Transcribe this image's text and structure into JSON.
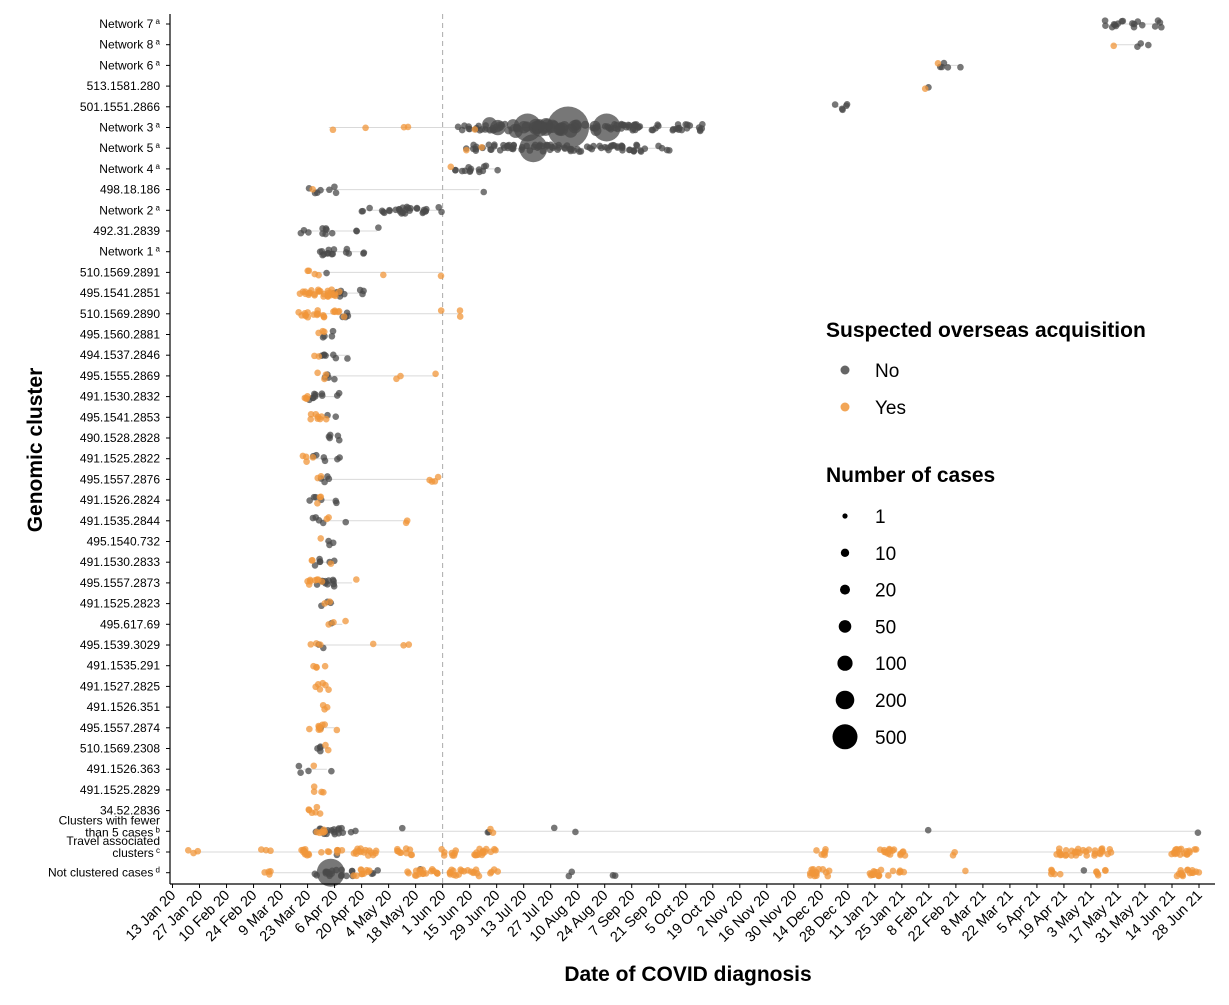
{
  "chart_data": {
    "type": "scatter",
    "xlabel": "Date of COVID diagnosis",
    "ylabel": "Genomic cluster",
    "x_ticks": [
      "13 Jan 20",
      "27 Jan 20",
      "10 Feb 20",
      "24 Feb 20",
      "9 Mar 20",
      "23 Mar 20",
      "6 Apr 20",
      "20 Apr 20",
      "4 May 20",
      "18 May 20",
      "1 Jun 20",
      "15 Jun 20",
      "29 Jun 20",
      "13 Jul 20",
      "27 Jul 20",
      "10 Aug 20",
      "24 Aug 20",
      "7 Sep 20",
      "21 Sep 20",
      "5 Oct 20",
      "19 Oct 20",
      "2 Nov 20",
      "16 Nov 20",
      "30 Nov 20",
      "14 Dec 20",
      "28 Dec 20",
      "11 Jan 21",
      "25 Jan 21",
      "8 Feb 21",
      "22 Feb 21",
      "8 Mar 21",
      "22 Mar 21",
      "5 Apr 21",
      "19 Apr 21",
      "3 May 21",
      "17 May 21",
      "31 May 21",
      "14 Jun 21",
      "28 Jun 21"
    ],
    "reference_line": {
      "x": "1 Jun 20",
      "style": "dashed"
    },
    "clusters": [
      {
        "label": "Network 7",
        "sup": "a",
        "no": [
          [
            "2021-05-15",
            9
          ],
          [
            "2021-05-26",
            5
          ],
          [
            "2021-06-08",
            4
          ]
        ],
        "yes": []
      },
      {
        "label": "Network 8",
        "sup": "a",
        "no": [
          [
            "2021-05-30",
            3
          ]
        ],
        "yes": [
          [
            "2021-05-14",
            1
          ]
        ]
      },
      {
        "label": "Network 6",
        "sup": "a",
        "no": [
          [
            "2021-02-15",
            4
          ],
          [
            "2021-02-24",
            1
          ]
        ],
        "yes": [
          [
            "2021-02-13",
            1
          ]
        ]
      },
      {
        "label": "513.1581.280",
        "sup": "",
        "no": [
          [
            "2021-02-08",
            1
          ]
        ],
        "yes": [
          [
            "2021-02-06",
            1
          ]
        ]
      },
      {
        "label": "501.1551.2866",
        "sup": "",
        "no": [
          [
            "2020-12-26",
            4
          ],
          [
            "2020-12-20",
            1
          ]
        ],
        "yes": []
      },
      {
        "label": "Network 3",
        "sup": "a",
        "no": [
          [
            "2020-06-12",
            6
          ],
          [
            "2020-06-25",
            20
          ],
          [
            "2020-07-15",
            120
          ],
          [
            "2020-08-05",
            500
          ],
          [
            "2020-08-25",
            60
          ],
          [
            "2020-09-12",
            25
          ],
          [
            "2020-10-02",
            12
          ],
          [
            "2020-10-14",
            5
          ]
        ],
        "yes": [
          [
            "2020-04-03",
            1
          ],
          [
            "2020-04-20",
            1
          ],
          [
            "2020-05-12",
            2
          ],
          [
            "2020-06-16",
            1
          ]
        ]
      },
      {
        "label": "Network 5",
        "sup": "a",
        "no": [
          [
            "2020-06-17",
            6
          ],
          [
            "2020-06-30",
            20
          ],
          [
            "2020-07-18",
            50
          ],
          [
            "2020-08-05",
            40
          ],
          [
            "2020-08-25",
            20
          ],
          [
            "2020-09-10",
            10
          ],
          [
            "2020-09-24",
            4
          ]
        ],
        "yes": [
          [
            "2020-06-12",
            1
          ],
          [
            "2020-06-20",
            1
          ]
        ]
      },
      {
        "label": "Network 4",
        "sup": "a",
        "no": [
          [
            "2020-06-12",
            8
          ],
          [
            "2020-06-20",
            5
          ],
          [
            "2020-06-30",
            1
          ]
        ],
        "yes": [
          [
            "2020-06-05",
            1
          ]
        ]
      },
      {
        "label": "498.18.186",
        "sup": "",
        "no": [
          [
            "2020-03-27",
            4
          ],
          [
            "2020-04-05",
            3
          ],
          [
            "2020-06-20",
            1
          ]
        ],
        "yes": [
          [
            "2020-03-25",
            1
          ]
        ]
      },
      {
        "label": "Network 2",
        "sup": "a",
        "no": [
          [
            "2020-04-22",
            3
          ],
          [
            "2020-05-08",
            20
          ],
          [
            "2020-05-22",
            8
          ],
          [
            "2020-05-31",
            2
          ]
        ],
        "yes": []
      },
      {
        "label": "492.31.2839",
        "sup": "",
        "no": [
          [
            "2020-03-21",
            3
          ],
          [
            "2020-04-03",
            6
          ],
          [
            "2020-04-18",
            2
          ],
          [
            "2020-04-28",
            1
          ]
        ],
        "yes": []
      },
      {
        "label": "Network 1",
        "sup": "a",
        "no": [
          [
            "2020-04-01",
            10
          ],
          [
            "2020-04-12",
            3
          ],
          [
            "2020-04-23",
            2
          ]
        ],
        "yes": []
      },
      {
        "label": "510.1569.2891",
        "sup": "",
        "no": [
          [
            "2020-03-31",
            1
          ]
        ],
        "yes": [
          [
            "2020-03-26",
            4
          ],
          [
            "2020-04-30",
            1
          ],
          [
            "2020-06-01",
            1
          ]
        ]
      },
      {
        "label": "495.1541.2851",
        "sup": "",
        "no": [
          [
            "2020-04-10",
            8
          ],
          [
            "2020-04-20",
            3
          ]
        ],
        "yes": [
          [
            "2020-03-27",
            20
          ],
          [
            "2020-04-05",
            10
          ]
        ]
      },
      {
        "label": "510.1569.2890",
        "sup": "",
        "no": [
          [
            "2020-04-12",
            4
          ]
        ],
        "yes": [
          [
            "2020-03-25",
            15
          ],
          [
            "2020-04-08",
            6
          ],
          [
            "2020-06-01",
            1
          ],
          [
            "2020-06-10",
            2
          ]
        ]
      },
      {
        "label": "495.1560.2881",
        "sup": "",
        "no": [
          [
            "2020-04-02",
            4
          ]
        ],
        "yes": [
          [
            "2020-03-31",
            3
          ]
        ]
      },
      {
        "label": "494.1537.2846",
        "sup": "",
        "no": [
          [
            "2020-04-03",
            6
          ],
          [
            "2020-04-14",
            1
          ]
        ],
        "yes": [
          [
            "2020-03-28",
            2
          ]
        ]
      },
      {
        "label": "495.1555.2869",
        "sup": "",
        "no": [
          [
            "2020-04-03",
            4
          ]
        ],
        "yes": [
          [
            "2020-03-31",
            3
          ],
          [
            "2020-05-08",
            2
          ],
          [
            "2020-05-29",
            1
          ]
        ]
      },
      {
        "label": "491.1530.2832",
        "sup": "",
        "no": [
          [
            "2020-03-27",
            8
          ],
          [
            "2020-04-08",
            2
          ]
        ],
        "yes": [
          [
            "2020-03-20",
            4
          ]
        ]
      },
      {
        "label": "495.1541.2853",
        "sup": "",
        "no": [
          [
            "2020-04-04",
            2
          ]
        ],
        "yes": [
          [
            "2020-03-29",
            8
          ]
        ]
      },
      {
        "label": "490.1528.2828",
        "sup": "",
        "no": [
          [
            "2020-04-06",
            5
          ]
        ],
        "yes": []
      },
      {
        "label": "491.1525.2822",
        "sup": "",
        "no": [
          [
            "2020-03-29",
            4
          ],
          [
            "2020-04-10",
            2
          ]
        ],
        "yes": [
          [
            "2020-03-23",
            4
          ]
        ]
      },
      {
        "label": "495.1557.2876",
        "sup": "",
        "no": [
          [
            "2020-04-02",
            4
          ]
        ],
        "yes": [
          [
            "2020-03-29",
            2
          ],
          [
            "2020-05-28",
            4
          ]
        ]
      },
      {
        "label": "491.1526.2824",
        "sup": "",
        "no": [
          [
            "2020-03-27",
            4
          ],
          [
            "2020-04-07",
            2
          ]
        ],
        "yes": [
          [
            "2020-03-30",
            3
          ]
        ]
      },
      {
        "label": "491.1535.2844",
        "sup": "",
        "no": [
          [
            "2020-03-29",
            4
          ],
          [
            "2020-04-10",
            1
          ]
        ],
        "yes": [
          [
            "2020-04-02",
            2
          ],
          [
            "2020-05-13",
            2
          ]
        ]
      },
      {
        "label": "495.1540.732",
        "sup": "",
        "no": [
          [
            "2020-04-04",
            3
          ]
        ],
        "yes": [
          [
            "2020-04-01",
            1
          ]
        ]
      },
      {
        "label": "491.1530.2833",
        "sup": "",
        "no": [
          [
            "2020-03-29",
            4
          ],
          [
            "2020-04-05",
            2
          ]
        ],
        "yes": [
          [
            "2020-03-27",
            2
          ],
          [
            "2020-04-02",
            1
          ]
        ]
      },
      {
        "label": "495.1557.2873",
        "sup": "",
        "no": [
          [
            "2020-04-02",
            12
          ]
        ],
        "yes": [
          [
            "2020-03-27",
            8
          ],
          [
            "2020-04-15",
            1
          ]
        ]
      },
      {
        "label": "491.1525.2823",
        "sup": "",
        "no": [
          [
            "2020-03-31",
            2
          ],
          [
            "2020-04-06",
            1
          ]
        ],
        "yes": [
          [
            "2020-04-01",
            2
          ]
        ]
      },
      {
        "label": "495.617.69",
        "sup": "",
        "no": [
          [
            "2020-04-05",
            1
          ]
        ],
        "yes": [
          [
            "2020-04-03",
            2
          ],
          [
            "2020-04-10",
            1
          ]
        ]
      },
      {
        "label": "495.1539.3029",
        "sup": "",
        "no": [
          [
            "2020-03-31",
            2
          ]
        ],
        "yes": [
          [
            "2020-03-27",
            3
          ],
          [
            "2020-04-26",
            1
          ],
          [
            "2020-05-13",
            2
          ]
        ]
      },
      {
        "label": "491.1535.291",
        "sup": "",
        "no": [],
        "yes": [
          [
            "2020-03-29",
            4
          ]
        ]
      },
      {
        "label": "491.1527.2825",
        "sup": "",
        "no": [],
        "yes": [
          [
            "2020-03-30",
            6
          ]
        ]
      },
      {
        "label": "491.1526.351",
        "sup": "",
        "no": [],
        "yes": [
          [
            "2020-04-01",
            3
          ]
        ]
      },
      {
        "label": "495.1557.2874",
        "sup": "",
        "no": [
          [
            "2020-04-01",
            1
          ]
        ],
        "yes": [
          [
            "2020-03-28",
            8
          ],
          [
            "2020-04-06",
            1
          ]
        ]
      },
      {
        "label": "510.1569.2308",
        "sup": "",
        "no": [
          [
            "2020-03-28",
            4
          ]
        ],
        "yes": [
          [
            "2020-04-03",
            2
          ]
        ]
      },
      {
        "label": "491.1526.363",
        "sup": "",
        "no": [
          [
            "2020-03-21",
            3
          ],
          [
            "2020-04-02",
            1
          ]
        ],
        "yes": [
          [
            "2020-03-25",
            1
          ]
        ]
      },
      {
        "label": "491.1525.2829",
        "sup": "",
        "no": [],
        "yes": [
          [
            "2020-03-29",
            4
          ]
        ]
      },
      {
        "label": "34.52.2836",
        "sup": "",
        "no": [],
        "yes": [
          [
            "2020-03-26",
            6
          ]
        ]
      },
      {
        "label": "Clusters with fewer than 5 cases",
        "sup": "b",
        "no": [
          [
            "2020-04-04",
            20
          ],
          [
            "2020-04-16",
            2
          ],
          [
            "2020-05-12",
            1
          ],
          [
            "2020-06-24",
            2
          ],
          [
            "2020-07-27",
            1
          ],
          [
            "2020-08-09",
            1
          ],
          [
            "2021-02-07",
            1
          ],
          [
            "2021-06-26",
            1
          ]
        ],
        "yes": [
          [
            "2020-03-30",
            6
          ],
          [
            "2020-06-27",
            2
          ]
        ]
      },
      {
        "label": "Travel associated clusters",
        "sup": "c",
        "no": [
          [
            "2020-04-05",
            2
          ]
        ],
        "yes": [
          [
            "2020-01-24",
            3
          ],
          [
            "2020-03-01",
            3
          ],
          [
            "2020-03-30",
            40
          ],
          [
            "2020-04-22",
            15
          ],
          [
            "2020-05-13",
            10
          ],
          [
            "2020-06-05",
            8
          ],
          [
            "2020-06-22",
            15
          ],
          [
            "2020-12-15",
            6
          ],
          [
            "2021-01-20",
            15
          ],
          [
            "2021-02-21",
            2
          ],
          [
            "2021-04-22",
            20
          ],
          [
            "2021-05-07",
            15
          ],
          [
            "2021-06-20",
            20
          ]
        ]
      },
      {
        "label": "Not clustered cases",
        "sup": "d",
        "no": [
          [
            "2020-04-04",
            60
          ],
          [
            "2020-04-26",
            3
          ],
          [
            "2020-05-21",
            1
          ],
          [
            "2020-08-08",
            2
          ],
          [
            "2020-08-29",
            2
          ],
          [
            "2021-04-30",
            1
          ]
        ],
        "yes": [
          [
            "2020-03-01",
            4
          ],
          [
            "2020-04-20",
            10
          ],
          [
            "2020-05-22",
            20
          ],
          [
            "2020-06-12",
            20
          ],
          [
            "2020-06-28",
            4
          ],
          [
            "2020-12-15",
            15
          ],
          [
            "2021-01-18",
            25
          ],
          [
            "2021-02-28",
            1
          ],
          [
            "2021-04-15",
            6
          ],
          [
            "2021-05-08",
            6
          ],
          [
            "2021-06-22",
            15
          ]
        ]
      }
    ],
    "legend_fill": {
      "title": "Suspected overseas acquisition",
      "items": [
        {
          "label": "No",
          "color": "#4a4a4a"
        },
        {
          "label": "Yes",
          "color": "#f0963a"
        }
      ]
    },
    "legend_size": {
      "title": "Number of cases",
      "items": [
        "1",
        "10",
        "20",
        "50",
        "100",
        "200",
        "500"
      ]
    }
  }
}
